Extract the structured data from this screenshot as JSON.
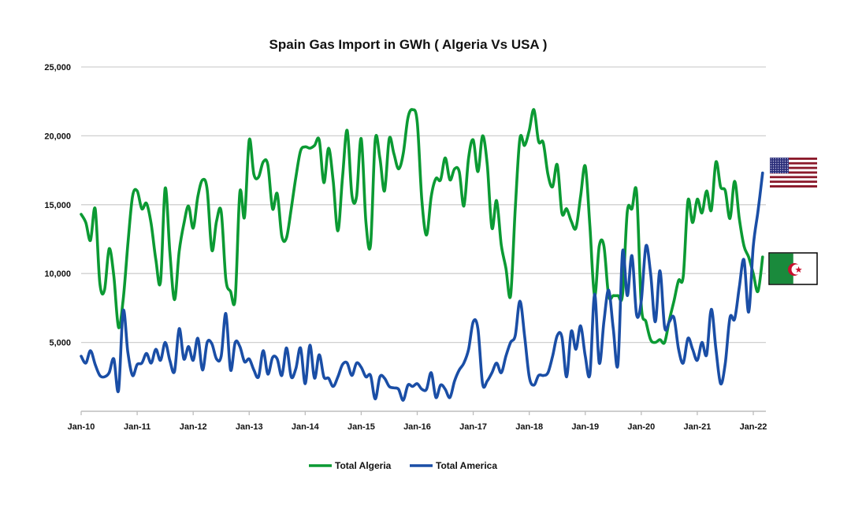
{
  "chart_data": {
    "type": "line",
    "title": "Spain Gas Import in GWh ( Algeria Vs USA )",
    "xlabel": "",
    "ylabel": "",
    "ylim": [
      0,
      25000
    ],
    "yticks": [
      5000,
      10000,
      15000,
      20000,
      25000
    ],
    "ytick_labels": [
      "5,000",
      "10,000",
      "15,000",
      "20,000",
      "25,000"
    ],
    "xtick_labels": [
      "Jan-10",
      "Jan-11",
      "Jan-12",
      "Jan-13",
      "Jan-14",
      "Jan-15",
      "Jan-16",
      "Jan-17",
      "Jan-18",
      "Jan-19",
      "Jan-20",
      "Jan-21",
      "Jan-22"
    ],
    "xticks": [
      "2010-01",
      "2011-01",
      "2012-01",
      "2013-01",
      "2014-01",
      "2015-01",
      "2016-01",
      "2017-01",
      "2018-01",
      "2019-01",
      "2020-01",
      "2021-01",
      "2022-01"
    ],
    "grid": "horizontal",
    "legend_position": "bottom",
    "x": [
      "2010-01",
      "2010-02",
      "2010-03",
      "2010-04",
      "2010-05",
      "2010-06",
      "2010-07",
      "2010-08",
      "2010-09",
      "2010-10",
      "2010-11",
      "2010-12",
      "2011-01",
      "2011-02",
      "2011-03",
      "2011-04",
      "2011-05",
      "2011-06",
      "2011-07",
      "2011-08",
      "2011-09",
      "2011-10",
      "2011-11",
      "2011-12",
      "2012-01",
      "2012-02",
      "2012-03",
      "2012-04",
      "2012-05",
      "2012-06",
      "2012-07",
      "2012-08",
      "2012-09",
      "2012-10",
      "2012-11",
      "2012-12",
      "2013-01",
      "2013-02",
      "2013-03",
      "2013-04",
      "2013-05",
      "2013-06",
      "2013-07",
      "2013-08",
      "2013-09",
      "2013-10",
      "2013-11",
      "2013-12",
      "2014-01",
      "2014-02",
      "2014-03",
      "2014-04",
      "2014-05",
      "2014-06",
      "2014-07",
      "2014-08",
      "2014-09",
      "2014-10",
      "2014-11",
      "2014-12",
      "2015-01",
      "2015-02",
      "2015-03",
      "2015-04",
      "2015-05",
      "2015-06",
      "2015-07",
      "2015-08",
      "2015-09",
      "2015-10",
      "2015-11",
      "2015-12",
      "2016-01",
      "2016-02",
      "2016-03",
      "2016-04",
      "2016-05",
      "2016-06",
      "2016-07",
      "2016-08",
      "2016-09",
      "2016-10",
      "2016-11",
      "2016-12",
      "2017-01",
      "2017-02",
      "2017-03",
      "2017-04",
      "2017-05",
      "2017-06",
      "2017-07",
      "2017-08",
      "2017-09",
      "2017-10",
      "2017-11",
      "2017-12",
      "2018-01",
      "2018-02",
      "2018-03",
      "2018-04",
      "2018-05",
      "2018-06",
      "2018-07",
      "2018-08",
      "2018-09",
      "2018-10",
      "2018-11",
      "2018-12",
      "2019-01",
      "2019-02",
      "2019-03",
      "2019-04",
      "2019-05",
      "2019-06",
      "2019-07",
      "2019-08",
      "2019-09",
      "2019-10",
      "2019-11",
      "2019-12",
      "2020-01",
      "2020-02",
      "2020-03",
      "2020-04",
      "2020-05",
      "2020-06",
      "2020-07",
      "2020-08",
      "2020-09",
      "2020-10",
      "2020-11",
      "2020-12",
      "2021-01",
      "2021-02",
      "2021-03",
      "2021-04",
      "2021-05",
      "2021-06",
      "2021-07",
      "2021-08",
      "2021-09",
      "2021-10",
      "2021-11",
      "2021-12",
      "2022-01",
      "2022-02",
      "2022-03"
    ],
    "series": [
      {
        "name": "Total Algeria",
        "color": "#0b9a33",
        "flag": "algeria-flag",
        "values": [
          14300,
          13700,
          12400,
          14700,
          9300,
          8800,
          11800,
          9800,
          6100,
          8100,
          12100,
          15600,
          16000,
          14700,
          15100,
          13600,
          11000,
          9400,
          16200,
          11600,
          8100,
          11600,
          13600,
          14900,
          13300,
          15600,
          16800,
          16100,
          11700,
          13800,
          14500,
          9600,
          8700,
          8200,
          15900,
          14100,
          19700,
          17200,
          17000,
          18100,
          17900,
          14700,
          15800,
          12700,
          12600,
          14700,
          17000,
          18900,
          19200,
          19100,
          19300,
          19700,
          16600,
          19100,
          16700,
          13100,
          17000,
          20400,
          15700,
          15600,
          19800,
          13800,
          12100,
          19700,
          18400,
          16000,
          19800,
          18700,
          17600,
          18700,
          21300,
          21900,
          21000,
          15300,
          12800,
          15600,
          16900,
          16800,
          18400,
          16800,
          17600,
          17400,
          14900,
          18400,
          19700,
          17400,
          20000,
          17900,
          13300,
          15300,
          12100,
          10400,
          8400,
          14700,
          19800,
          19300,
          20400,
          21900,
          19600,
          19500,
          17200,
          16300,
          17900,
          14400,
          14700,
          13800,
          13300,
          15600,
          17800,
          13400,
          8400,
          12000,
          12000,
          8400,
          8400,
          8400,
          8500,
          14500,
          14700,
          15900,
          7700,
          6500,
          5200,
          5000,
          5200,
          5000,
          6600,
          8000,
          9500,
          9800,
          15300,
          13700,
          15400,
          14400,
          16000,
          14600,
          18100,
          16300,
          16000,
          14000,
          16700,
          14000,
          12000,
          11200,
          10000,
          8700,
          11200
        ]
      },
      {
        "name": "Total America",
        "color": "#1a4ea6",
        "flag": "usa-flag",
        "values": [
          4000,
          3500,
          4400,
          3400,
          2600,
          2500,
          2800,
          3800,
          1500,
          7300,
          4300,
          2600,
          3400,
          3500,
          4200,
          3500,
          4500,
          3700,
          5000,
          3700,
          2900,
          6000,
          3800,
          4700,
          3700,
          5300,
          3000,
          5000,
          4900,
          3800,
          4000,
          7100,
          3000,
          5000,
          4700,
          3600,
          3800,
          3000,
          2500,
          4400,
          2700,
          3900,
          3800,
          2600,
          4600,
          2500,
          3100,
          4600,
          2000,
          4800,
          2400,
          4100,
          2500,
          2400,
          1800,
          2500,
          3400,
          3500,
          2600,
          3500,
          3200,
          2500,
          2600,
          900,
          2500,
          2400,
          1800,
          1700,
          1600,
          800,
          1900,
          1800,
          2000,
          1600,
          1600,
          2800,
          1000,
          1900,
          1600,
          1000,
          2200,
          3000,
          3500,
          4500,
          6500,
          6000,
          2000,
          2200,
          2800,
          3500,
          2800,
          4000,
          5000,
          5500,
          8000,
          5500,
          2500,
          1900,
          2600,
          2600,
          2800,
          4000,
          5500,
          5400,
          2500,
          5800,
          4500,
          6200,
          4000,
          2700,
          8500,
          3500,
          6500,
          8800,
          6000,
          3400,
          11600,
          8400,
          11300,
          7000,
          8000,
          12000,
          10000,
          6500,
          10200,
          6100,
          6500,
          6800,
          4500,
          3500,
          5300,
          4500,
          3700,
          5000,
          4100,
          7400,
          4500,
          2000,
          3500,
          6800,
          6700,
          9000,
          11000,
          7200,
          12000,
          14500,
          17300
        ]
      }
    ]
  }
}
